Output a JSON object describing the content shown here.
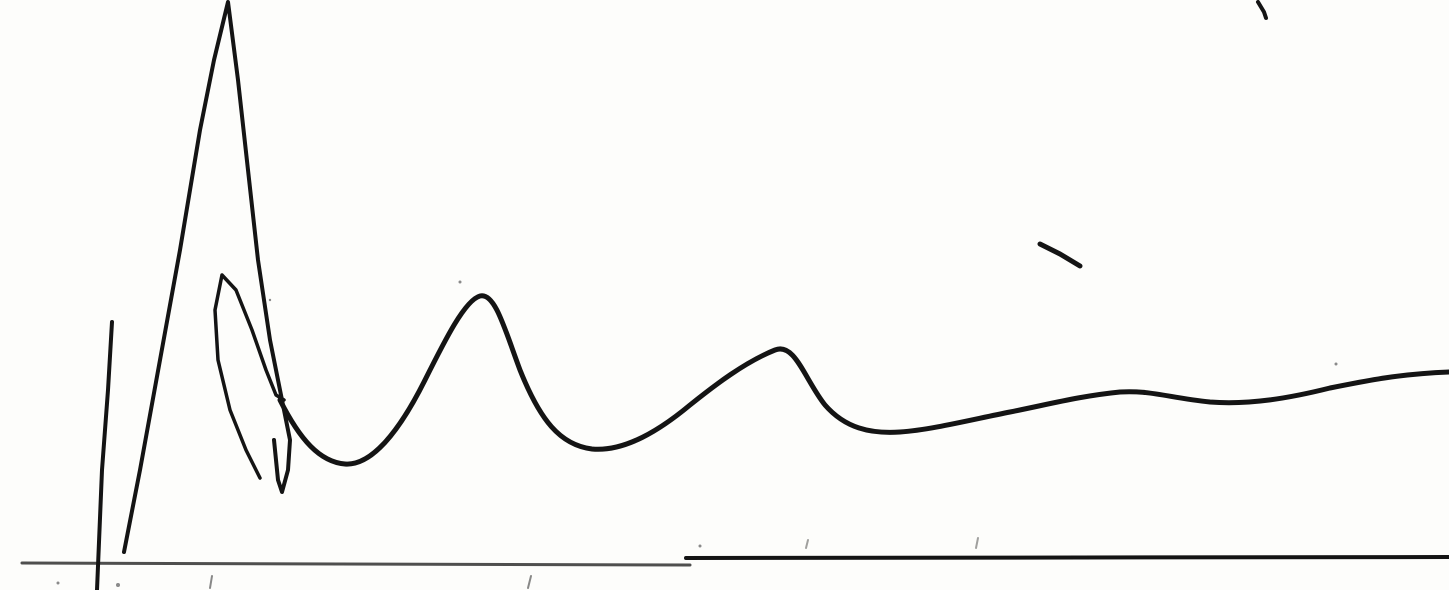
{
  "figure": {
    "description_free": true,
    "ink_color": "#141414",
    "paper_color": "#fdfdfb"
  }
}
